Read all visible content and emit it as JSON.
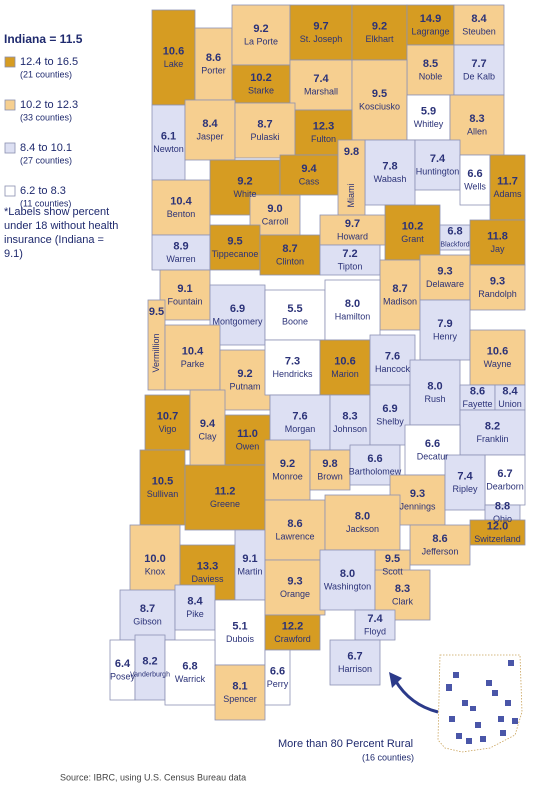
{
  "title": "Indiana = 11.5",
  "legend": [
    {
      "label": "12.4 to 16.5",
      "count": "(21 counties)",
      "color": "#d69c22"
    },
    {
      "label": "10.2 to 12.3",
      "count": "(33 counties)",
      "color": "#f6cf90"
    },
    {
      "label": "8.4 to 10.1",
      "count": "(27 counties)",
      "color": "#dde0f3"
    },
    {
      "label": "6.2 to 8.3",
      "count": "(11 counties)",
      "color": "#ffffff"
    }
  ],
  "note": "*Labels show percent under 18 without health insurance (Indiana = 9.1)",
  "inset": {
    "title": "More than 80 Percent Rural",
    "count": "(16 counties)"
  },
  "source": "Source: IBRC, using U.S. Census Bureau data",
  "counties": [
    {
      "name": "Lake",
      "value": "10.6",
      "class": 0
    },
    {
      "name": "Porter",
      "value": "8.6",
      "class": 1
    },
    {
      "name": "La Porte",
      "value": "9.2",
      "class": 1
    },
    {
      "name": "St. Joseph",
      "value": "9.7",
      "class": 0
    },
    {
      "name": "Elkhart",
      "value": "9.2",
      "class": 0
    },
    {
      "name": "Lagrange",
      "value": "14.9",
      "class": 0
    },
    {
      "name": "Steuben",
      "value": "8.4",
      "class": 1
    },
    {
      "name": "Noble",
      "value": "8.5",
      "class": 1
    },
    {
      "name": "De Kalb",
      "value": "7.7",
      "class": 2
    },
    {
      "name": "Starke",
      "value": "10.2",
      "class": 0
    },
    {
      "name": "Marshall",
      "value": "7.4",
      "class": 1
    },
    {
      "name": "Kosciusko",
      "value": "9.5",
      "class": 1
    },
    {
      "name": "Whitley",
      "value": "5.9",
      "class": 3
    },
    {
      "name": "Allen",
      "value": "8.3",
      "class": 1
    },
    {
      "name": "Newton",
      "value": "6.1",
      "class": 2
    },
    {
      "name": "Jasper",
      "value": "8.4",
      "class": 1
    },
    {
      "name": "Pulaski",
      "value": "8.7",
      "class": 1
    },
    {
      "name": "Fulton",
      "value": "12.3",
      "class": 0
    },
    {
      "name": "Wabash",
      "value": "7.8",
      "class": 2
    },
    {
      "name": "Huntington",
      "value": "7.4",
      "class": 2
    },
    {
      "name": "Wells",
      "value": "6.6",
      "class": 3
    },
    {
      "name": "Adams",
      "value": "11.7",
      "class": 0
    },
    {
      "name": "Benton",
      "value": "10.4",
      "class": 1
    },
    {
      "name": "White",
      "value": "9.2",
      "class": 0
    },
    {
      "name": "Carroll",
      "value": "9.0",
      "class": 1
    },
    {
      "name": "Cass",
      "value": "9.4",
      "class": 0
    },
    {
      "name": "Miami",
      "value": "9.8",
      "class": 1
    },
    {
      "name": "Grant",
      "value": "10.2",
      "class": 0
    },
    {
      "name": "Blackford",
      "value": "6.8",
      "class": 2
    },
    {
      "name": "Jay",
      "value": "11.8",
      "class": 0
    },
    {
      "name": "Warren",
      "value": "8.9",
      "class": 2
    },
    {
      "name": "Tippecanoe",
      "value": "9.5",
      "class": 0
    },
    {
      "name": "Clinton",
      "value": "8.7",
      "class": 0
    },
    {
      "name": "Howard",
      "value": "9.7",
      "class": 1
    },
    {
      "name": "Tipton",
      "value": "7.2",
      "class": 2
    },
    {
      "name": "Madison",
      "value": "8.7",
      "class": 1
    },
    {
      "name": "Delaware",
      "value": "9.3",
      "class": 1
    },
    {
      "name": "Randolph",
      "value": "9.3",
      "class": 1
    },
    {
      "name": "Fountain",
      "value": "9.1",
      "class": 1
    },
    {
      "name": "Vermillion",
      "value": "9.5",
      "class": 1
    },
    {
      "name": "Montgomery",
      "value": "6.9",
      "class": 2
    },
    {
      "name": "Boone",
      "value": "5.5",
      "class": 3
    },
    {
      "name": "Hamilton",
      "value": "8.0",
      "class": 3
    },
    {
      "name": "Parke",
      "value": "10.4",
      "class": 1
    },
    {
      "name": "Putnam",
      "value": "9.2",
      "class": 1
    },
    {
      "name": "Hendricks",
      "value": "7.3",
      "class": 3
    },
    {
      "name": "Marion",
      "value": "10.6",
      "class": 0
    },
    {
      "name": "Hancock",
      "value": "7.6",
      "class": 2
    },
    {
      "name": "Henry",
      "value": "7.9",
      "class": 2
    },
    {
      "name": "Wayne",
      "value": "10.6",
      "class": 1
    },
    {
      "name": "Vigo",
      "value": "10.7",
      "class": 0
    },
    {
      "name": "Clay",
      "value": "9.4",
      "class": 1
    },
    {
      "name": "Owen",
      "value": "11.0",
      "class": 0
    },
    {
      "name": "Morgan",
      "value": "7.6",
      "class": 2
    },
    {
      "name": "Johnson",
      "value": "8.3",
      "class": 2
    },
    {
      "name": "Shelby",
      "value": "6.9",
      "class": 2
    },
    {
      "name": "Rush",
      "value": "8.0",
      "class": 2
    },
    {
      "name": "Fayette",
      "value": "8.6",
      "class": 2
    },
    {
      "name": "Union",
      "value": "8.4",
      "class": 2
    },
    {
      "name": "Franklin",
      "value": "8.2",
      "class": 2
    },
    {
      "name": "Decatur",
      "value": "6.6",
      "class": 3
    },
    {
      "name": "Dearborn",
      "value": "6.7",
      "class": 3
    },
    {
      "name": "Sullivan",
      "value": "10.5",
      "class": 0
    },
    {
      "name": "Greene",
      "value": "11.2",
      "class": 0
    },
    {
      "name": "Monroe",
      "value": "9.2",
      "class": 1
    },
    {
      "name": "Brown",
      "value": "9.8",
      "class": 1
    },
    {
      "name": "Bartholomew",
      "value": "6.6",
      "class": 2
    },
    {
      "name": "Jennings",
      "value": "9.3",
      "class": 1
    },
    {
      "name": "Ripley",
      "value": "7.4",
      "class": 2
    },
    {
      "name": "Ohio",
      "value": "8.8",
      "class": 2
    },
    {
      "name": "Switzerland",
      "value": "12.0",
      "class": 0
    },
    {
      "name": "Knox",
      "value": "10.0",
      "class": 1
    },
    {
      "name": "Daviess",
      "value": "13.3",
      "class": 0
    },
    {
      "name": "Martin",
      "value": "9.1",
      "class": 2
    },
    {
      "name": "Lawrence",
      "value": "8.6",
      "class": 1
    },
    {
      "name": "Jackson",
      "value": "8.0",
      "class": 1
    },
    {
      "name": "Jefferson",
      "value": "8.6",
      "class": 1
    },
    {
      "name": "Scott",
      "value": "9.5",
      "class": 1
    },
    {
      "name": "Gibson",
      "value": "8.7",
      "class": 2
    },
    {
      "name": "Pike",
      "value": "8.4",
      "class": 2
    },
    {
      "name": "Dubois",
      "value": "5.1",
      "class": 3
    },
    {
      "name": "Orange",
      "value": "9.3",
      "class": 1
    },
    {
      "name": "Washington",
      "value": "8.0",
      "class": 2
    },
    {
      "name": "Clark",
      "value": "8.3",
      "class": 1
    },
    {
      "name": "Crawford",
      "value": "12.2",
      "class": 0
    },
    {
      "name": "Floyd",
      "value": "7.4",
      "class": 2
    },
    {
      "name": "Harrison",
      "value": "6.7",
      "class": 2
    },
    {
      "name": "Posey",
      "value": "6.4",
      "class": 3
    },
    {
      "name": "Vanderburgh",
      "value": "8.2",
      "class": 2
    },
    {
      "name": "Warrick",
      "value": "6.8",
      "class": 3
    },
    {
      "name": "Spencer",
      "value": "8.1",
      "class": 1
    },
    {
      "name": "Perry",
      "value": "6.6",
      "class": 3
    }
  ]
}
